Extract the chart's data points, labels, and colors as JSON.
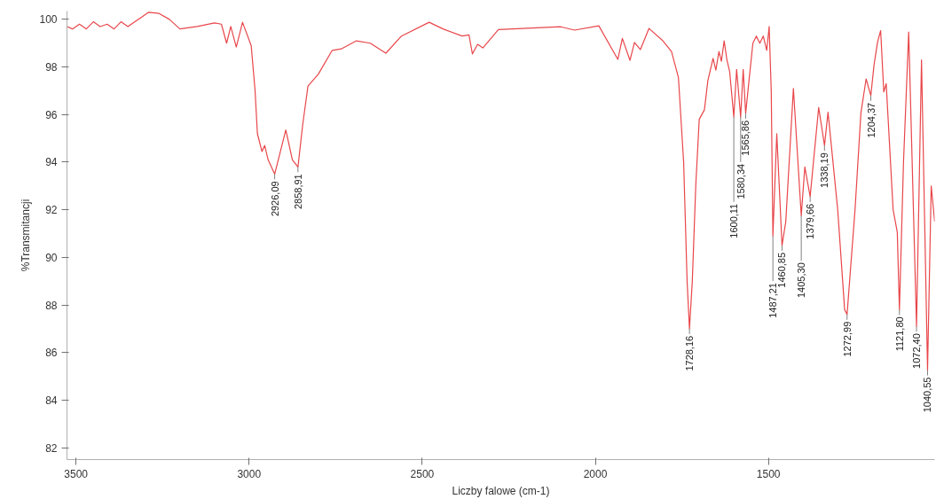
{
  "chart_data": {
    "type": "line",
    "xlabel": "Liczby falowe (cm-1)",
    "ylabel": "%Transmitancji",
    "xlim": [
      3526,
      1020
    ],
    "ylim": [
      81.5,
      100.35
    ],
    "xticks": [
      3500,
      3000,
      2500,
      2000,
      1500
    ],
    "yticks": [
      82,
      84,
      86,
      88,
      90,
      92,
      94,
      96,
      98,
      100
    ],
    "grid": false,
    "marker": "none",
    "line_style": "solid",
    "series": [
      {
        "color": "#e8464a",
        "x": [
          3526,
          3510,
          3490,
          3470,
          3450,
          3430,
          3410,
          3390,
          3370,
          3350,
          3330,
          3310,
          3290,
          3260,
          3230,
          3200,
          3150,
          3100,
          3080,
          3065,
          3053,
          3037,
          3019,
          2994,
          2983,
          2976,
          2963,
          2955,
          2945,
          2926.09,
          2894,
          2875,
          2858.91,
          2845,
          2830,
          2800,
          2760,
          2734,
          2690,
          2650,
          2605,
          2560,
          2480,
          2440,
          2385,
          2365,
          2355,
          2340,
          2325,
          2280,
          2100,
          2060,
          1990,
          1935,
          1922,
          1900,
          1887,
          1870,
          1845,
          1805,
          1780,
          1760,
          1745,
          1735,
          1728.16,
          1720,
          1710,
          1700,
          1685,
          1675,
          1660,
          1652,
          1643,
          1636,
          1628,
          1620,
          1612,
          1600.11,
          1592,
          1580.34,
          1573,
          1565.86,
          1555,
          1545,
          1535,
          1525,
          1515,
          1505,
          1498,
          1492,
          1487.21,
          1476,
          1460.85,
          1450,
          1428,
          1405.3,
          1395,
          1379.66,
          1355,
          1338.19,
          1328,
          1300,
          1280,
          1272.99,
          1250,
          1233,
          1218,
          1204.37,
          1195,
          1185,
          1176,
          1167,
          1160,
          1140,
          1128,
          1121.8,
          1110,
          1095,
          1072.4,
          1058,
          1040.55,
          1030,
          1020
        ],
        "values": [
          99.7,
          99.6,
          99.8,
          99.6,
          99.9,
          99.7,
          99.8,
          99.6,
          99.9,
          99.7,
          99.9,
          100.1,
          100.3,
          100.25,
          100.0,
          99.6,
          99.7,
          99.85,
          99.8,
          99.0,
          99.7,
          98.84,
          99.88,
          98.9,
          97.06,
          95.2,
          94.45,
          94.7,
          94.1,
          93.5,
          95.35,
          94.1,
          93.8,
          95.6,
          97.2,
          97.7,
          98.7,
          98.76,
          99.1,
          99.0,
          98.58,
          99.3,
          99.88,
          99.6,
          99.3,
          99.35,
          98.55,
          98.95,
          98.8,
          99.57,
          99.69,
          99.55,
          99.73,
          98.32,
          99.2,
          98.28,
          99.03,
          98.73,
          99.62,
          99.1,
          98.65,
          97.55,
          94.0,
          89.0,
          87.0,
          89.0,
          93.0,
          95.8,
          96.2,
          97.43,
          98.36,
          97.87,
          98.65,
          98.24,
          99.1,
          98.3,
          97.8,
          95.9,
          97.9,
          95.9,
          97.9,
          96.05,
          97.6,
          99.0,
          99.3,
          99.0,
          99.3,
          98.7,
          99.7,
          97.0,
          90.9,
          95.2,
          90.5,
          91.5,
          97.1,
          91.75,
          93.8,
          92.55,
          96.3,
          94.7,
          96.1,
          92.0,
          87.8,
          87.6,
          92.0,
          96.07,
          97.5,
          96.8,
          98.1,
          99.04,
          99.53,
          96.95,
          97.3,
          92.0,
          91.06,
          87.8,
          94.0,
          99.47,
          87.1,
          98.3,
          85.26,
          93.0,
          91.5
        ]
      }
    ],
    "annotations": [
      {
        "text": "2926,09",
        "x": 2926.09,
        "y": 93.5
      },
      {
        "text": "2858,91",
        "x": 2858.91,
        "y": 93.8
      },
      {
        "text": "1728,16",
        "x": 1728.16,
        "y": 87.0
      },
      {
        "text": "1600,11",
        "x": 1600.11,
        "y": 95.9
      },
      {
        "text": "1580,34",
        "x": 1580.34,
        "y": 95.9
      },
      {
        "text": "1565,86",
        "x": 1565.86,
        "y": 96.05
      },
      {
        "text": "1487,21",
        "x": 1487.21,
        "y": 90.9
      },
      {
        "text": "1460,85",
        "x": 1460.85,
        "y": 90.5
      },
      {
        "text": "1405,30",
        "x": 1405.3,
        "y": 91.75
      },
      {
        "text": "1379,66",
        "x": 1379.66,
        "y": 92.55
      },
      {
        "text": "1338,19",
        "x": 1338.19,
        "y": 94.7
      },
      {
        "text": "1272,99",
        "x": 1272.99,
        "y": 87.6
      },
      {
        "text": "1204,37",
        "x": 1204.37,
        "y": 96.8
      },
      {
        "text": "1121,80",
        "x": 1121.8,
        "y": 87.8
      },
      {
        "text": "1072,40",
        "x": 1072.4,
        "y": 87.1
      },
      {
        "text": "1040,55",
        "x": 1040.55,
        "y": 85.26
      }
    ]
  }
}
